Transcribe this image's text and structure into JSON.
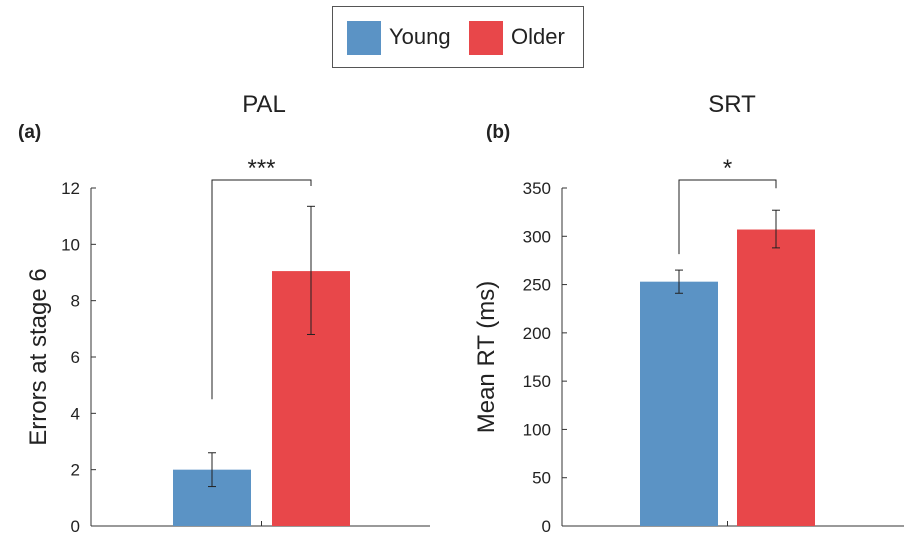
{
  "legend": [
    {
      "label": "Young",
      "color": "#5b93c5"
    },
    {
      "label": "Older",
      "color": "#e8474a"
    }
  ],
  "chart_data": [
    {
      "panel_label": "(a)",
      "type": "bar",
      "title": "PAL",
      "ylabel": "Errors at stage 6",
      "xlabel": "",
      "ylim": [
        0,
        12
      ],
      "yticks": [
        0,
        2,
        4,
        6,
        8,
        10,
        12
      ],
      "categories": [
        "Young",
        "Older"
      ],
      "values": [
        2.0,
        9.05
      ],
      "error_low": [
        1.4,
        6.8
      ],
      "error_high": [
        2.6,
        11.35
      ],
      "colors": [
        "#5b93c5",
        "#e8474a"
      ],
      "significance": "***",
      "grid": false
    },
    {
      "panel_label": "(b)",
      "type": "bar",
      "title": "SRT",
      "ylabel": "Mean RT (ms)",
      "xlabel": "",
      "ylim": [
        0,
        350
      ],
      "yticks": [
        0,
        50,
        100,
        150,
        200,
        250,
        300,
        350
      ],
      "categories": [
        "Young",
        "Older"
      ],
      "values": [
        253,
        307
      ],
      "error_low": [
        241,
        288
      ],
      "error_high": [
        265,
        327
      ],
      "colors": [
        "#5b93c5",
        "#e8474a"
      ],
      "significance": "*",
      "grid": false
    }
  ]
}
